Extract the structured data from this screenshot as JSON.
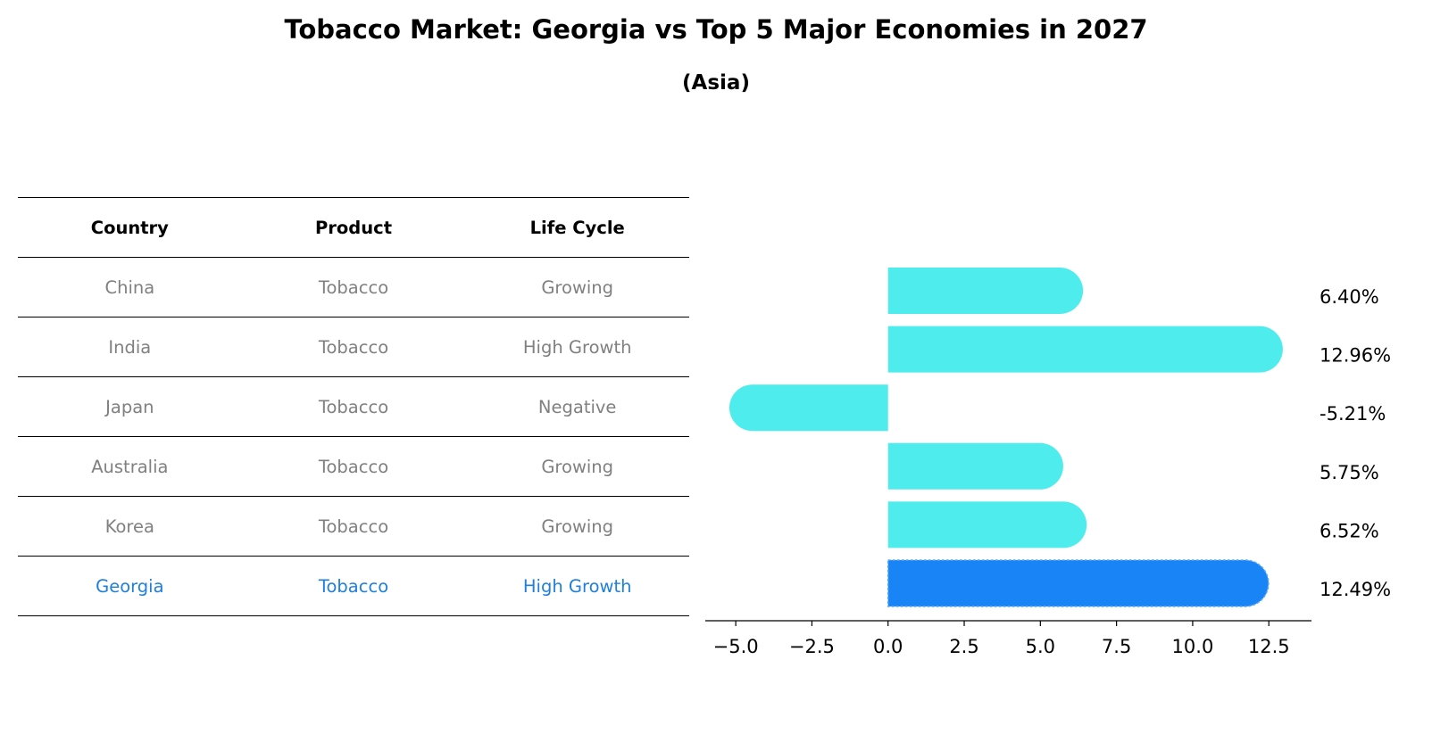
{
  "title": "Tobacco Market: Georgia vs Top 5 Major Economies in 2027",
  "subtitle": "(Asia)",
  "table": {
    "headers": [
      "Country",
      "Product",
      "Life Cycle"
    ],
    "rows": [
      [
        "China",
        "Tobacco",
        "Growing"
      ],
      [
        "India",
        "Tobacco",
        "High Growth"
      ],
      [
        "Japan",
        "Tobacco",
        "Negative"
      ],
      [
        "Australia",
        "Tobacco",
        "Growing"
      ],
      [
        "Korea",
        "Tobacco",
        "Growing"
      ],
      [
        "Georgia",
        "Tobacco",
        "High Growth"
      ]
    ],
    "highlight_color": "#1f7fdc",
    "text_color": "#808080"
  },
  "chart_data": {
    "type": "bar",
    "orientation": "horizontal",
    "categories": [
      "China",
      "India",
      "Japan",
      "Australia",
      "Korea",
      "Georgia"
    ],
    "values": [
      6.4,
      12.96,
      -5.21,
      5.75,
      6.52,
      12.49
    ],
    "value_labels": [
      "6.40%",
      "12.96%",
      "-5.21%",
      "5.75%",
      "6.52%",
      "12.49%"
    ],
    "highlight": "Georgia",
    "colors": {
      "default": "#4eecec",
      "highlight": "#1884f5"
    },
    "xlim": [
      -6.0,
      13.9
    ],
    "xticks": [
      -5.0,
      -2.5,
      0.0,
      2.5,
      5.0,
      7.5,
      10.0,
      12.5
    ],
    "xtick_labels": [
      "−5.0",
      "−2.5",
      "0.0",
      "2.5",
      "5.0",
      "7.5",
      "10.0",
      "12.5"
    ],
    "xlabel": "",
    "ylabel": ""
  }
}
